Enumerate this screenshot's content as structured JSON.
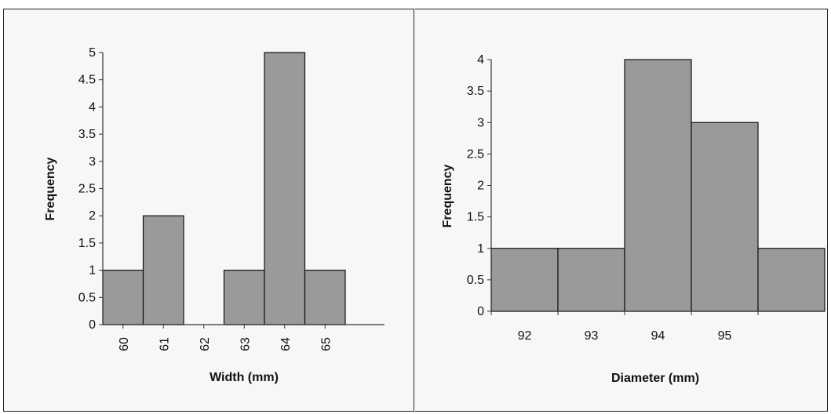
{
  "chart_data": [
    {
      "type": "bar",
      "title": "",
      "xlabel": "Width (mm)",
      "ylabel": "Frequency",
      "categories": [
        "60",
        "61",
        "62",
        "63",
        "64",
        "65"
      ],
      "values": [
        1,
        2,
        0,
        1,
        5,
        1
      ],
      "ylim": [
        0,
        5
      ],
      "yticks": [
        "0",
        "0.5",
        "1",
        "1.5",
        "2",
        "2.5",
        "3",
        "3.5",
        "4",
        "4.5",
        "5"
      ],
      "xtick_rotation": "vertical",
      "grid": false,
      "legend": "none",
      "bar_color": "#9a9a9a"
    },
    {
      "type": "bar",
      "title": "",
      "xlabel": "Diameter (mm)",
      "ylabel": "Frequency",
      "categories": [
        "92",
        "93",
        "94",
        "95",
        ""
      ],
      "values": [
        1,
        1,
        4,
        3,
        1
      ],
      "ylim": [
        0,
        4
      ],
      "yticks": [
        "0",
        "0.5",
        "1",
        "1.5",
        "2",
        "2.5",
        "3",
        "3.5",
        "4"
      ],
      "grid": false,
      "legend": "none",
      "bar_color": "#9a9a9a"
    }
  ]
}
